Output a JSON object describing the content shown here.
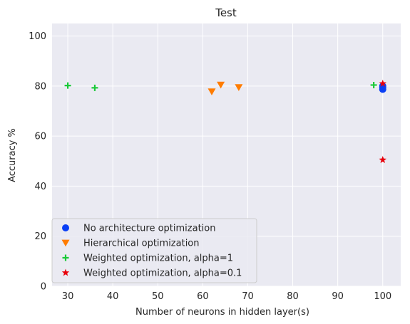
{
  "chart_data": {
    "type": "scatter",
    "title": "Test",
    "xlabel": "Number of neurons in hidden layer(s)",
    "ylabel": "Accuracy %",
    "xlim": [
      26.5,
      104
    ],
    "ylim": [
      0,
      105
    ],
    "xticks": [
      30,
      40,
      50,
      60,
      70,
      80,
      90,
      100
    ],
    "yticks": [
      0,
      20,
      40,
      60,
      80,
      100
    ],
    "grid": true,
    "background": "#eaeaf2",
    "legend_position": "lower-left",
    "series": [
      {
        "name": "No architecture optimization",
        "marker": "circle",
        "color": "#0a3ff5",
        "points": [
          [
            100,
            78.7
          ],
          [
            100,
            79.4
          ],
          [
            100,
            80.0
          ]
        ]
      },
      {
        "name": "Hierarchical optimization",
        "marker": "triangle-down",
        "color": "#ff7c00",
        "points": [
          [
            62,
            77.8
          ],
          [
            64,
            80.5
          ],
          [
            68,
            79.5
          ]
        ]
      },
      {
        "name": "Weighted optimization, alpha=1",
        "marker": "plus",
        "color": "#1ac938",
        "points": [
          [
            30,
            80.2
          ],
          [
            36,
            79.3
          ],
          [
            98,
            80.4
          ]
        ]
      },
      {
        "name": "Weighted optimization, alpha=0.1",
        "marker": "star",
        "color": "#e8000b",
        "points": [
          [
            100,
            81.0
          ],
          [
            100,
            50.5
          ]
        ]
      }
    ]
  }
}
